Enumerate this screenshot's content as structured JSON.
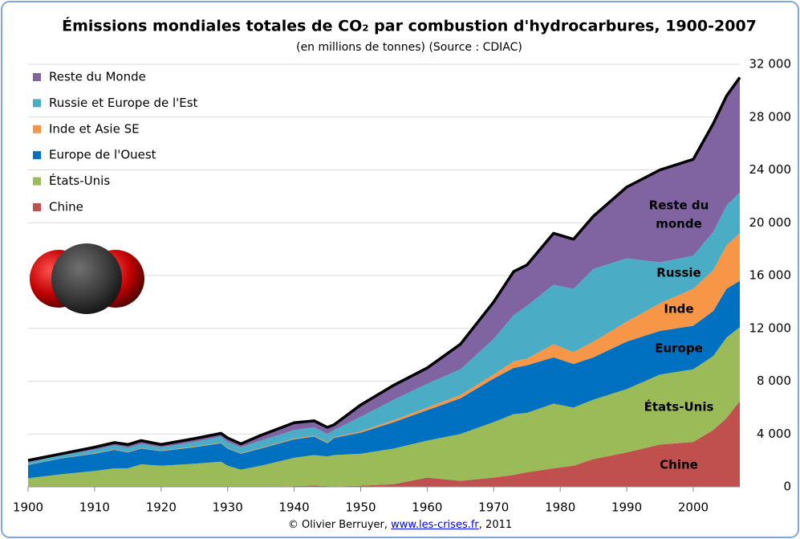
{
  "chart_data": {
    "type": "stacked_area",
    "title": "Émissions mondiales totales de CO₂ par combustion d'hydrocarbures, 1900-2007",
    "subtitle": "(en millions de tonnes) (Source : CDIAC)",
    "footer": {
      "prefix": "© Olivier Berruyer,",
      "link": "www.les-crises.fr",
      "suffix": ", 2011"
    },
    "x": [
      1900,
      1905,
      1910,
      1913,
      1915,
      1917,
      1920,
      1925,
      1929,
      1930,
      1932,
      1935,
      1940,
      1943,
      1945,
      1946,
      1950,
      1955,
      1960,
      1965,
      1970,
      1973,
      1975,
      1979,
      1982,
      1985,
      1990,
      1995,
      2000,
      2003,
      2005,
      2007
    ],
    "series": [
      {
        "name": "Chine",
        "label": [
          "Chine"
        ],
        "color": "#c0504d",
        "label_color": "#953735",
        "values": [
          0,
          0,
          0,
          0,
          0,
          0,
          0,
          0,
          0,
          0,
          0,
          0,
          50,
          100,
          50,
          30,
          80,
          200,
          700,
          450,
          700,
          900,
          1100,
          1400,
          1600,
          2100,
          2600,
          3200,
          3400,
          4300,
          5200,
          6500
        ]
      },
      {
        "name": "États-Unis",
        "label": [
          "États-Unis"
        ],
        "color": "#9bbb59",
        "label_color": "#4f6228",
        "values": [
          650,
          950,
          1200,
          1400,
          1400,
          1700,
          1600,
          1750,
          1900,
          1600,
          1300,
          1600,
          2150,
          2300,
          2250,
          2370,
          2420,
          2700,
          2800,
          3550,
          4200,
          4600,
          4500,
          4900,
          4400,
          4500,
          4800,
          5300,
          5500,
          5600,
          6100,
          5600
        ]
      },
      {
        "name": "Europe de l'Ouest",
        "label": [
          "Europe"
        ],
        "color": "#0070c0",
        "label_color": "#1f497d",
        "values": [
          1000,
          1200,
          1300,
          1400,
          1200,
          1200,
          1100,
          1250,
          1400,
          1300,
          1200,
          1300,
          1400,
          1400,
          1000,
          1300,
          1600,
          2000,
          2300,
          2700,
          3300,
          3500,
          3600,
          3500,
          3300,
          3200,
          3600,
          3300,
          3300,
          3400,
          3700,
          3500
        ]
      },
      {
        "name": "Inde et Asie SE",
        "label": [
          "Inde"
        ],
        "color": "#f79646",
        "label_color": "#e46c0a",
        "values": [
          20,
          20,
          30,
          30,
          30,
          30,
          30,
          40,
          40,
          40,
          30,
          40,
          60,
          70,
          60,
          60,
          100,
          150,
          200,
          250,
          300,
          500,
          500,
          1000,
          900,
          1200,
          1500,
          2100,
          2800,
          3100,
          3300,
          3600
        ]
      },
      {
        "name": "Russie et Europe de l'Est",
        "label": [
          "Russie"
        ],
        "color": "#4bacc6",
        "label_color": "#31859c",
        "values": [
          180,
          210,
          270,
          320,
          320,
          320,
          270,
          360,
          460,
          460,
          470,
          560,
          640,
          630,
          640,
          540,
          1100,
          1550,
          1800,
          1950,
          2700,
          3500,
          4000,
          4500,
          4800,
          5500,
          4800,
          3100,
          2500,
          2900,
          3000,
          3100
        ]
      },
      {
        "name": "Reste du Monde",
        "label": [
          "Reste du",
          "monde"
        ],
        "color": "#8064a2",
        "label_color": "#604a7b",
        "values": [
          150,
          120,
          200,
          200,
          250,
          250,
          200,
          250,
          250,
          300,
          250,
          400,
          550,
          500,
          500,
          400,
          900,
          1100,
          1200,
          1900,
          2800,
          3300,
          3100,
          3900,
          3750,
          4000,
          5400,
          7000,
          7300,
          8200,
          8300,
          8700
        ]
      }
    ],
    "xlim": [
      1900,
      2007
    ],
    "xticks": [
      1900,
      1910,
      1920,
      1930,
      1940,
      1950,
      1960,
      1970,
      1980,
      1990,
      2000
    ],
    "ylim": [
      0,
      32000
    ],
    "yticks": [
      0,
      {
        "value": 4000,
        "label": "4 000"
      },
      {
        "value": 8000,
        "label": "8 000"
      },
      {
        "value": 12000,
        "label": "12 000"
      },
      {
        "value": 16000,
        "label": "16 000"
      },
      {
        "value": 20000,
        "label": "20 000"
      },
      {
        "value": 24000,
        "label": "24 000"
      },
      {
        "value": 28000,
        "label": "28 000"
      },
      {
        "value": 32000,
        "label": "32 000"
      }
    ],
    "grid": true,
    "outline_color": "#000000",
    "legend": "upper left"
  }
}
